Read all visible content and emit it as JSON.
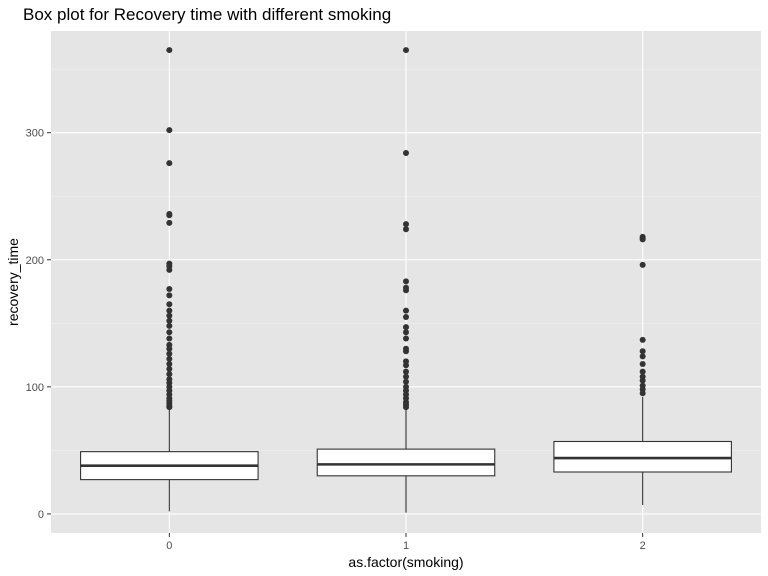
{
  "chart_data": {
    "type": "boxplot",
    "title": "Box plot for Recovery time with different smoking",
    "xlabel": "as.factor(smoking)",
    "ylabel": "recovery_time",
    "categories": [
      "0",
      "1",
      "2"
    ],
    "ylim": [
      -15,
      380
    ],
    "yticks": [
      0,
      100,
      200,
      300
    ],
    "grid": true,
    "colors": {
      "panel": "#e5e5e5",
      "grid_major": "#ffffff",
      "grid_minor": "#f0f0f0",
      "box_fill": "#ffffff",
      "box_stroke": "#333333",
      "outlier": "#333333",
      "tick_label": "#4d4d4d",
      "tick": "#333333"
    },
    "boxes": [
      {
        "category": "0",
        "min": 2,
        "q1": 27,
        "median": 38,
        "q3": 49,
        "max": 82,
        "outliers": [
          365,
          302,
          276,
          236,
          235,
          229,
          197,
          195,
          192,
          177,
          172,
          165,
          160,
          156,
          152,
          148,
          143,
          138,
          133,
          130,
          126,
          122,
          118,
          114,
          110,
          106,
          103,
          100,
          97,
          94,
          91,
          89,
          87,
          85,
          84
        ]
      },
      {
        "category": "1",
        "min": 1,
        "q1": 30,
        "median": 39,
        "q3": 51,
        "max": 83,
        "outliers": [
          365,
          284,
          228,
          224,
          183,
          178,
          176,
          160,
          155,
          147,
          143,
          138,
          130,
          128,
          120,
          117,
          112,
          108,
          104,
          100,
          97,
          94,
          91,
          88,
          86,
          84
        ]
      },
      {
        "category": "2",
        "min": 7,
        "q1": 33,
        "median": 44,
        "q3": 57,
        "max": 92,
        "outliers": [
          218,
          217,
          216,
          196,
          137,
          128,
          124,
          118,
          112,
          108,
          105,
          101,
          98,
          95
        ]
      }
    ]
  }
}
